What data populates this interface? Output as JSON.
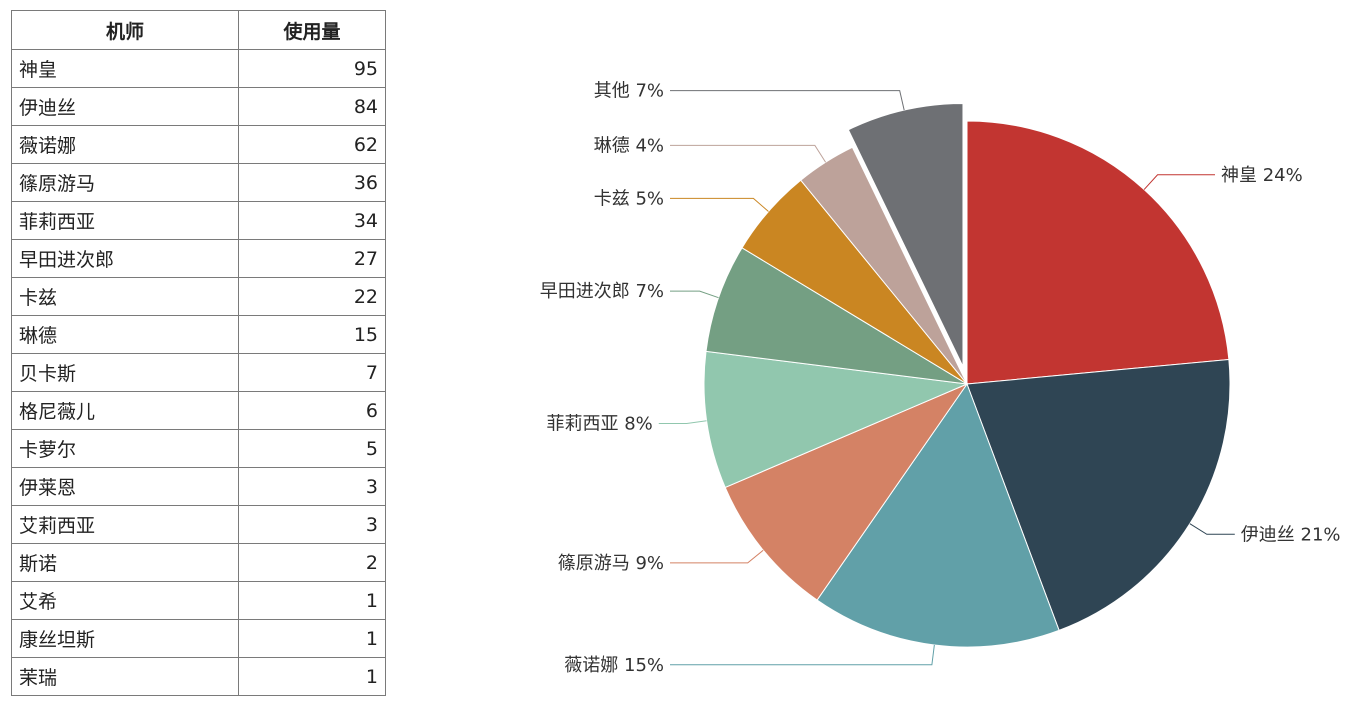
{
  "table": {
    "headers": [
      "机师",
      "使用量"
    ],
    "rows": [
      [
        "神皇",
        "95"
      ],
      [
        "伊迪丝",
        "84"
      ],
      [
        "薇诺娜",
        "62"
      ],
      [
        "篠原游马",
        "36"
      ],
      [
        "菲莉西亚",
        "34"
      ],
      [
        "早田进次郎",
        "27"
      ],
      [
        "卡兹",
        "22"
      ],
      [
        "琳德",
        "15"
      ],
      [
        "贝卡斯",
        "7"
      ],
      [
        "格尼薇儿",
        "6"
      ],
      [
        "卡萝尔",
        "5"
      ],
      [
        "伊莱恩",
        "3"
      ],
      [
        "艾莉西亚",
        "3"
      ],
      [
        "斯诺",
        "2"
      ],
      [
        "艾希",
        "1"
      ],
      [
        "康丝坦斯",
        "1"
      ],
      [
        "茉瑞",
        "1"
      ]
    ]
  },
  "chart_data": {
    "type": "pie",
    "slices": [
      {
        "name": "神皇",
        "value": 95,
        "label": "神皇 24%",
        "color": "#c23531"
      },
      {
        "name": "伊迪丝",
        "value": 84,
        "label": "伊迪丝 21%",
        "color": "#2f4554"
      },
      {
        "name": "薇诺娜",
        "value": 62,
        "label": "薇诺娜 15%",
        "color": "#61a0a8"
      },
      {
        "name": "篠原游马",
        "value": 36,
        "label": "篠原游马 9%",
        "color": "#d48265"
      },
      {
        "name": "菲莉西亚",
        "value": 34,
        "label": "菲莉西亚 8%",
        "color": "#91c7ae"
      },
      {
        "name": "早田进次郎",
        "value": 27,
        "label": "早田进次郎 7%",
        "color": "#749f83"
      },
      {
        "name": "卡兹",
        "value": 22,
        "label": "卡兹 5%",
        "color": "#ca8622"
      },
      {
        "name": "琳德",
        "value": 15,
        "label": "琳德 4%",
        "color": "#bda29a"
      },
      {
        "name": "其他",
        "value": 29,
        "label": "其他 7%",
        "color": "#6e7074",
        "offset": true
      }
    ]
  }
}
